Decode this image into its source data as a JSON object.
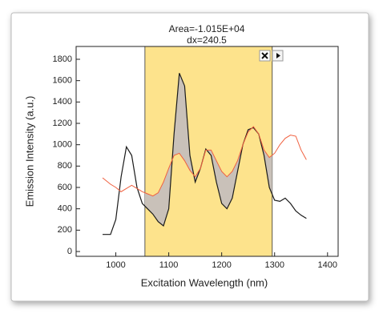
{
  "chart_data": {
    "type": "line",
    "annotations": [
      "Area=-1.015E+04",
      "dx=240.5"
    ],
    "xlabel": "Excitation Wavelength (nm)",
    "ylabel": "Emission Intensity (a.u.)",
    "x": [
      975,
      990,
      1000,
      1010,
      1020,
      1030,
      1040,
      1050,
      1060,
      1070,
      1080,
      1090,
      1100,
      1110,
      1120,
      1130,
      1140,
      1150,
      1160,
      1170,
      1180,
      1190,
      1200,
      1210,
      1220,
      1230,
      1240,
      1250,
      1260,
      1270,
      1280,
      1290,
      1300,
      1310,
      1320,
      1330,
      1340,
      1350,
      1360
    ],
    "series": [
      {
        "color": "#1a1a1a",
        "values": [
          160,
          160,
          300,
          700,
          980,
          900,
          600,
          450,
          400,
          350,
          280,
          240,
          400,
          1100,
          1670,
          1550,
          900,
          650,
          780,
          960,
          900,
          650,
          450,
          400,
          500,
          750,
          1000,
          1140,
          1160,
          1100,
          900,
          600,
          480,
          470,
          500,
          450,
          380,
          340,
          310
        ]
      },
      {
        "color": "#f0603f",
        "values": [
          690,
          630,
          600,
          560,
          590,
          620,
          590,
          560,
          540,
          520,
          550,
          650,
          780,
          900,
          920,
          850,
          760,
          700,
          780,
          950,
          950,
          850,
          750,
          700,
          750,
          850,
          1000,
          1120,
          1170,
          1100,
          950,
          880,
          920,
          1000,
          1060,
          1090,
          1080,
          950,
          860
        ]
      }
    ],
    "integration_range": [
      1055,
      1295.5
    ],
    "range_color": "#fde38c",
    "fill_color": "#c9c1b9",
    "xlim": [
      925,
      1420
    ],
    "ylim": [
      -45,
      1920
    ],
    "xticks": [
      1000,
      1100,
      1200,
      1300,
      1400
    ],
    "yticks": [
      0,
      200,
      400,
      600,
      800,
      1000,
      1200,
      1400,
      1600,
      1800
    ]
  }
}
